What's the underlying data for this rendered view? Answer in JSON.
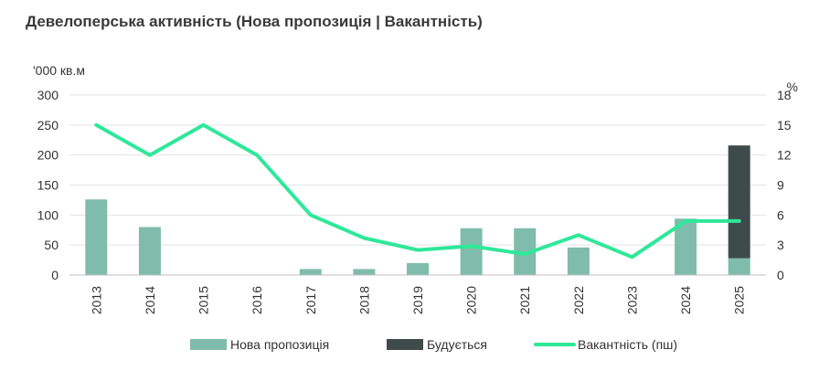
{
  "chart_data": {
    "type": "bar",
    "title": "Девелоперська активність (Нова пропозиція | Вакантність)",
    "y_unit_left": "'000 кв.м",
    "y_unit_right": "%",
    "categories": [
      "2013",
      "2014",
      "2015",
      "2016",
      "2017",
      "2018",
      "2019",
      "2020",
      "2021",
      "2022",
      "2023",
      "2024",
      "2025"
    ],
    "ylim_left": [
      0,
      300
    ],
    "yticks_left": [
      0,
      50,
      100,
      150,
      200,
      250,
      300
    ],
    "ylim_right": [
      0,
      18
    ],
    "yticks_right": [
      0,
      3,
      6,
      9,
      12,
      15,
      18
    ],
    "grid": true,
    "legend_position": "bottom",
    "series": [
      {
        "name": "Нова пропозиція",
        "kind": "bar",
        "stack": "supply",
        "color": "#7fbcab",
        "values": [
          126,
          80,
          0,
          0,
          10,
          10,
          20,
          78,
          78,
          46,
          0,
          94,
          28
        ]
      },
      {
        "name": "Будується",
        "kind": "bar",
        "stack": "supply",
        "color": "#3f4b4b",
        "values": [
          0,
          0,
          0,
          0,
          0,
          0,
          0,
          0,
          0,
          0,
          0,
          0,
          188
        ]
      },
      {
        "name": "Вакантність (пш)",
        "kind": "line",
        "axis": "right",
        "color": "#2ee89a",
        "values": [
          15,
          12,
          15,
          12,
          6,
          3.7,
          2.5,
          2.9,
          2.1,
          4,
          1.8,
          5.4,
          5.4
        ]
      }
    ]
  }
}
